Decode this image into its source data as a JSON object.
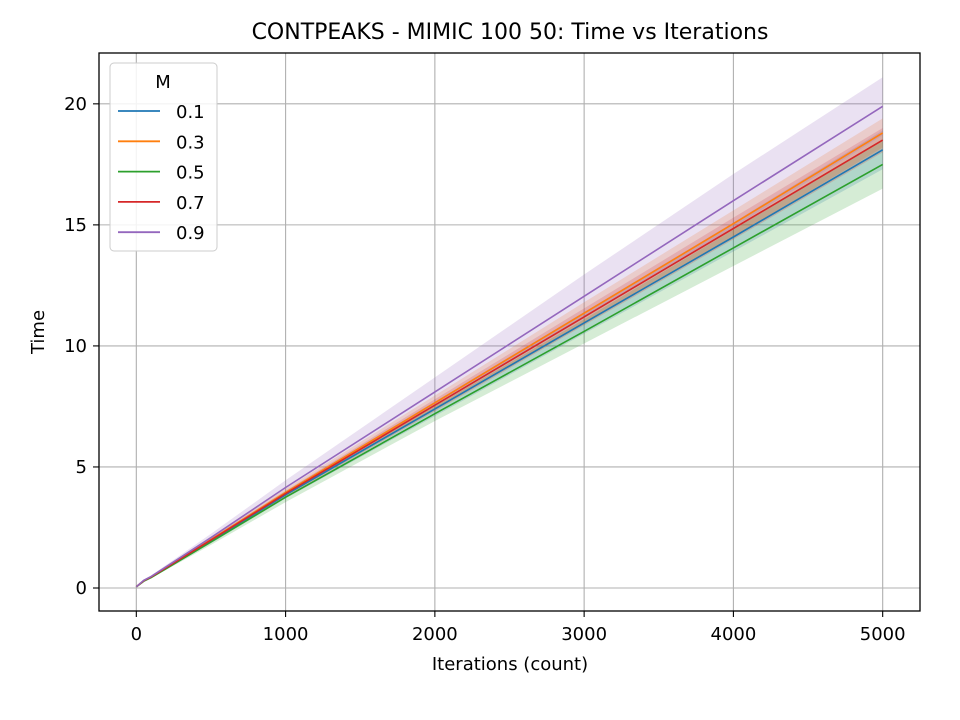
{
  "chart_data": {
    "type": "line",
    "title": "CONTPEAKS - MIMIC 100 50: Time vs Iterations",
    "xlabel": "Iterations (count)",
    "ylabel": "Time",
    "xlim": [
      -250,
      5250
    ],
    "ylim": [
      -0.95,
      22.1
    ],
    "xticks": [
      0,
      1000,
      2000,
      3000,
      4000,
      5000
    ],
    "yticks": [
      0,
      5,
      10,
      15,
      20
    ],
    "grid": true,
    "legend": {
      "title": "M",
      "placement": "top-left"
    },
    "x": [
      0,
      50,
      100,
      500,
      1000,
      2000,
      3000,
      4000,
      5000
    ],
    "series": [
      {
        "name": "0.1",
        "color": "#1f77b4",
        "values": [
          0.05,
          0.3,
          0.45,
          1.95,
          3.85,
          7.4,
          10.95,
          14.5,
          18.1
        ],
        "lower": [
          0.05,
          0.28,
          0.42,
          1.85,
          3.7,
          7.1,
          10.5,
          13.9,
          17.3
        ],
        "upper": [
          0.05,
          0.32,
          0.48,
          2.05,
          4.0,
          7.7,
          11.4,
          15.1,
          18.9
        ]
      },
      {
        "name": "0.3",
        "color": "#ff7f0e",
        "values": [
          0.05,
          0.3,
          0.46,
          2.0,
          3.95,
          7.65,
          11.35,
          15.05,
          18.8
        ],
        "lower": [
          0.05,
          0.28,
          0.43,
          1.9,
          3.8,
          7.35,
          10.9,
          14.5,
          18.2
        ],
        "upper": [
          0.05,
          0.32,
          0.49,
          2.1,
          4.1,
          7.95,
          11.8,
          15.6,
          19.4
        ]
      },
      {
        "name": "0.5",
        "color": "#2ca02c",
        "values": [
          0.05,
          0.28,
          0.43,
          1.9,
          3.75,
          7.2,
          10.6,
          14.05,
          17.5
        ],
        "lower": [
          0.05,
          0.26,
          0.4,
          1.78,
          3.55,
          6.9,
          10.1,
          13.3,
          16.5
        ],
        "upper": [
          0.05,
          0.3,
          0.46,
          2.02,
          3.95,
          7.5,
          11.1,
          14.8,
          18.5
        ]
      },
      {
        "name": "0.7",
        "color": "#d62728",
        "values": [
          0.05,
          0.3,
          0.46,
          1.98,
          3.9,
          7.55,
          11.2,
          14.85,
          18.5
        ],
        "lower": [
          0.05,
          0.28,
          0.43,
          1.9,
          3.78,
          7.3,
          10.85,
          14.4,
          18.0
        ],
        "upper": [
          0.05,
          0.32,
          0.49,
          2.06,
          4.02,
          7.8,
          11.55,
          15.3,
          19.0
        ]
      },
      {
        "name": "0.9",
        "color": "#9467bd",
        "values": [
          0.05,
          0.32,
          0.48,
          2.08,
          4.15,
          8.1,
          12.05,
          16.0,
          19.9
        ],
        "lower": [
          0.05,
          0.29,
          0.44,
          1.92,
          3.85,
          7.5,
          11.15,
          14.9,
          18.7
        ],
        "upper": [
          0.05,
          0.35,
          0.52,
          2.24,
          4.45,
          8.7,
          12.95,
          17.1,
          21.1
        ]
      }
    ]
  }
}
